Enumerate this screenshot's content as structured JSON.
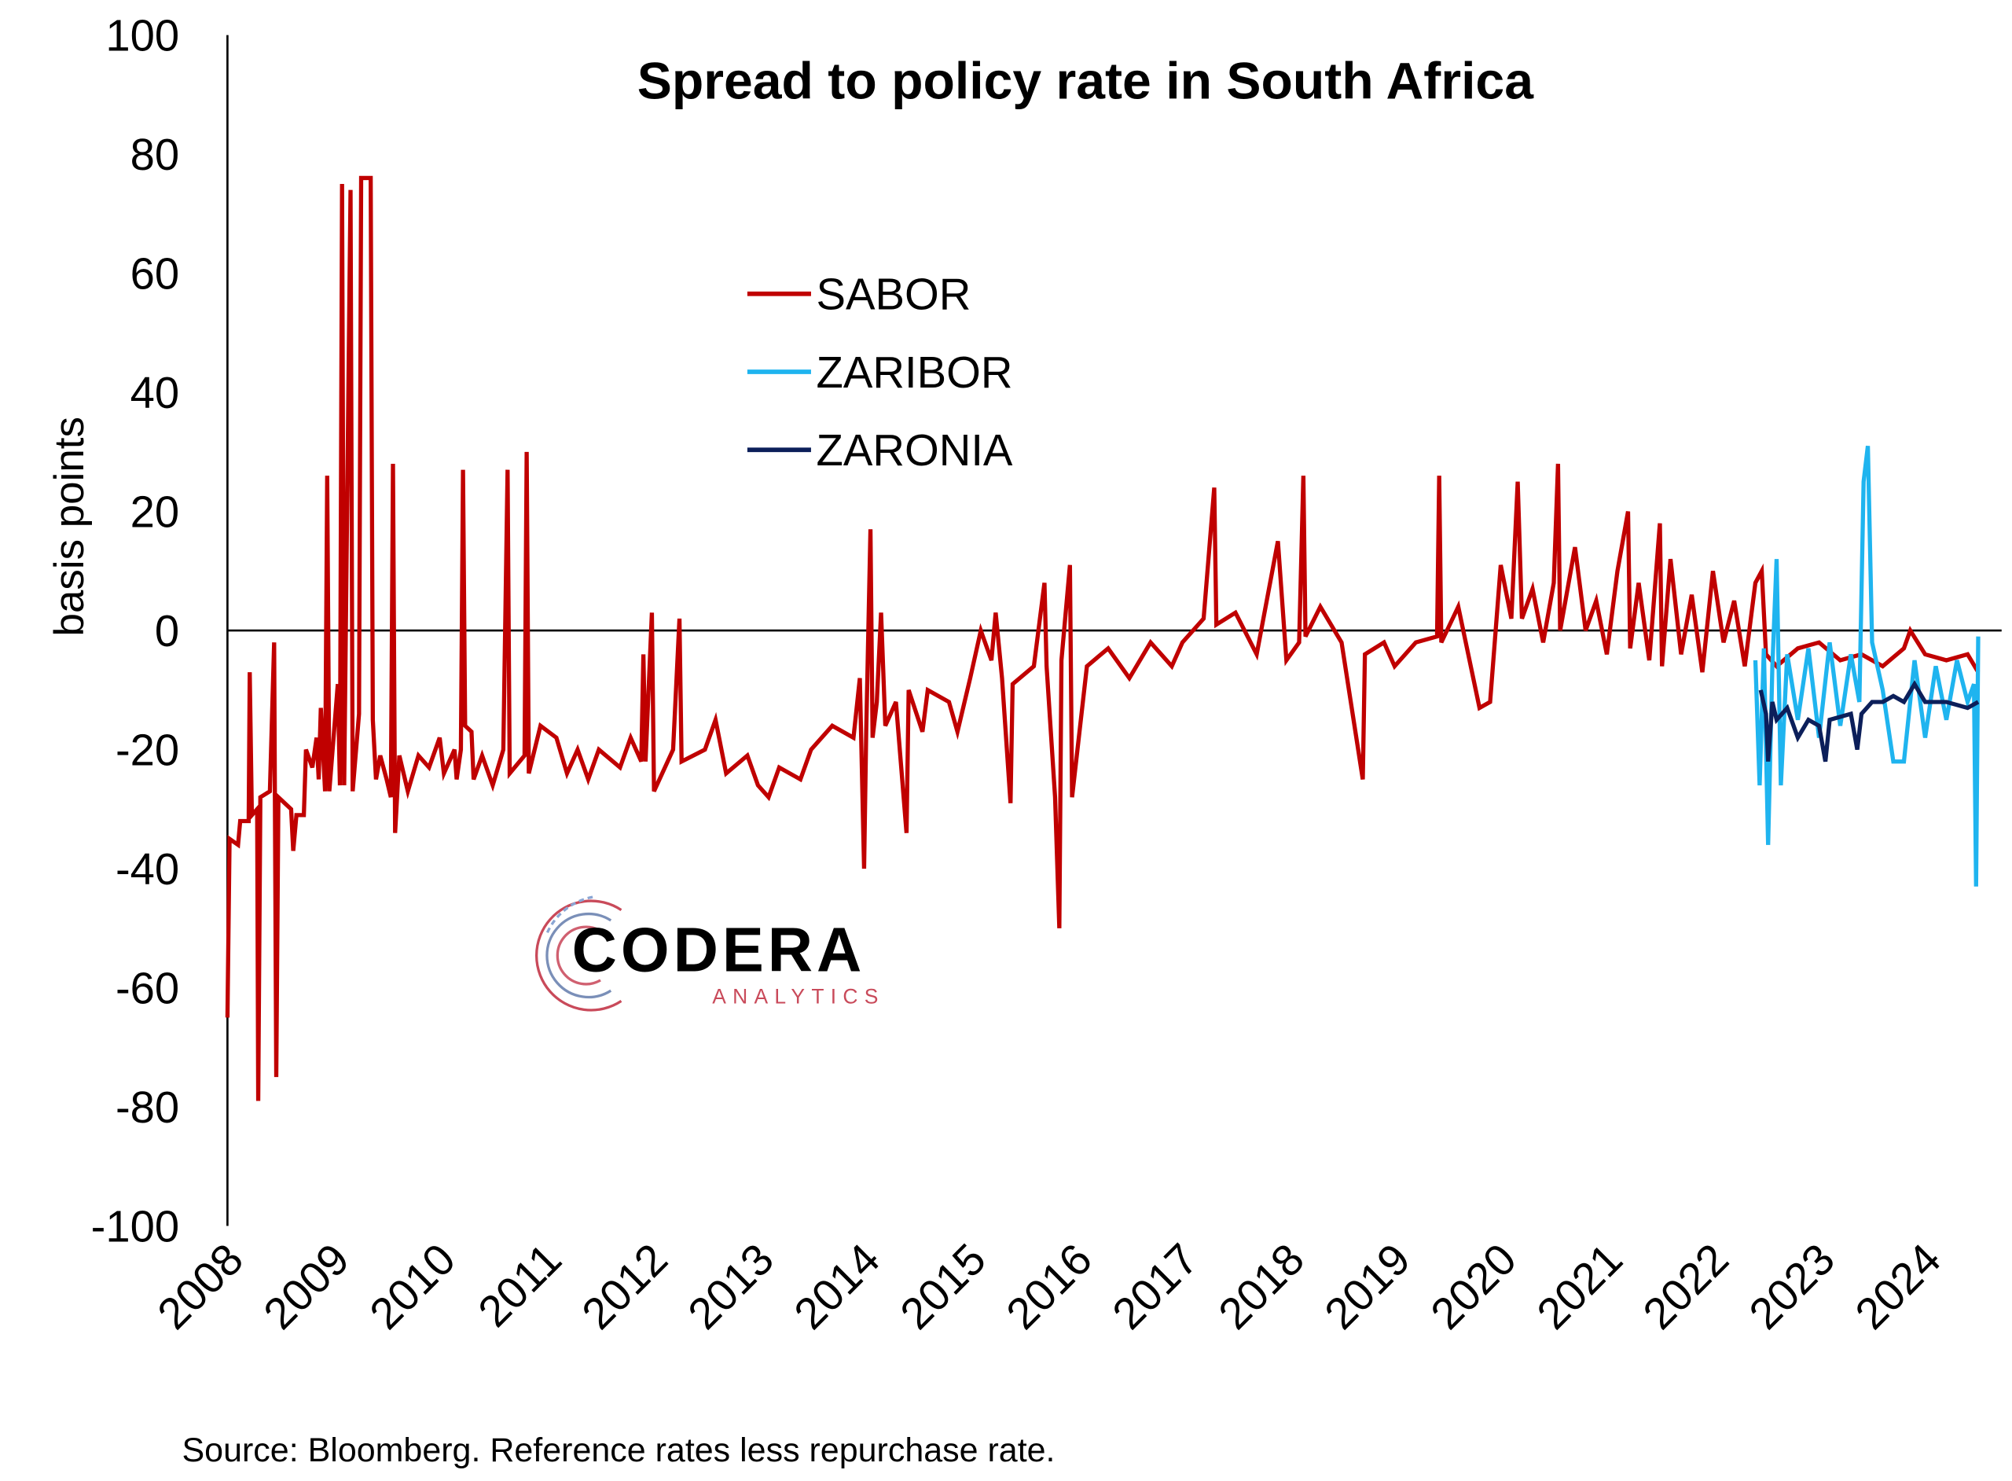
{
  "chart_data": {
    "type": "line",
    "title": "Spread to policy rate in South Africa",
    "ylabel": "basis points",
    "source": "Source: Bloomberg. Reference rates less repurchase rate.",
    "xlim": [
      2008,
      2024.5
    ],
    "xticks": [
      2008,
      2009,
      2010,
      2011,
      2012,
      2013,
      2014,
      2015,
      2016,
      2017,
      2018,
      2019,
      2020,
      2021,
      2022,
      2023,
      2024
    ],
    "ylim": [
      -100,
      100
    ],
    "yticks": [
      -100,
      -80,
      -60,
      -40,
      -20,
      0,
      20,
      40,
      60,
      80,
      100
    ],
    "grid": false,
    "series": [
      {
        "name": "SABOR",
        "color": "#c00000",
        "x": [
          2008.0,
          2008.02,
          2008.1,
          2008.12,
          2008.2,
          2008.21,
          2008.23,
          2008.28,
          2008.29,
          2008.31,
          2008.4,
          2008.44,
          2008.46,
          2008.48,
          2008.6,
          2008.62,
          2008.65,
          2008.72,
          2008.74,
          2008.8,
          2008.84,
          2008.86,
          2008.88,
          2008.92,
          2008.94,
          2008.96,
          2009.04,
          2009.06,
          2009.08,
          2009.1,
          2009.16,
          2009.18,
          2009.24,
          2009.26,
          2009.35,
          2009.37,
          2009.4,
          2009.44,
          2009.5,
          2009.54,
          2009.56,
          2009.58,
          2009.62,
          2009.7,
          2009.8,
          2009.9,
          2010.0,
          2010.04,
          2010.14,
          2010.16,
          2010.2,
          2010.22,
          2010.24,
          2010.3,
          2010.32,
          2010.4,
          2010.5,
          2010.6,
          2010.64,
          2010.66,
          2010.8,
          2010.82,
          2010.84,
          2010.95,
          2011.1,
          2011.2,
          2011.3,
          2011.4,
          2011.5,
          2011.7,
          2011.8,
          2011.9,
          2011.92,
          2011.94,
          2012.0,
          2012.02,
          2012.2,
          2012.26,
          2012.28,
          2012.5,
          2012.6,
          2012.7,
          2012.9,
          2013.0,
          2013.1,
          2013.2,
          2013.4,
          2013.5,
          2013.7,
          2013.9,
          2013.96,
          2014.0,
          2014.02,
          2014.06,
          2014.08,
          2014.12,
          2014.16,
          2014.2,
          2014.3,
          2014.4,
          2014.42,
          2014.55,
          2014.6,
          2014.8,
          2014.88,
          2015.0,
          2015.1,
          2015.2,
          2015.24,
          2015.3,
          2015.38,
          2015.4,
          2015.6,
          2015.7,
          2015.72,
          2015.8,
          2015.84,
          2015.86,
          2015.94,
          2015.96,
          2016.1,
          2016.3,
          2016.5,
          2016.7,
          2016.9,
          2017.0,
          2017.2,
          2017.3,
          2017.32,
          2017.5,
          2017.7,
          2017.9,
          2017.98,
          2018.1,
          2018.14,
          2018.16,
          2018.3,
          2018.5,
          2018.7,
          2018.72,
          2018.9,
          2019.0,
          2019.2,
          2019.4,
          2019.42,
          2019.44,
          2019.6,
          2019.8,
          2019.9,
          2020.0,
          2020.1,
          2020.16,
          2020.2,
          2020.3,
          2020.4,
          2020.5,
          2020.54,
          2020.56,
          2020.7,
          2020.8,
          2020.9,
          2021.0,
          2021.1,
          2021.2,
          2021.22,
          2021.3,
          2021.4,
          2021.5,
          2021.52,
          2021.6,
          2021.7,
          2021.8,
          2021.9,
          2022.0,
          2022.1,
          2022.2,
          2022.3,
          2022.4,
          2022.46,
          2022.5,
          2022.6,
          2022.8,
          2023.0,
          2023.2,
          2023.4,
          2023.6,
          2023.8,
          2023.86,
          2024.0,
          2024.2,
          2024.4,
          2024.5
        ],
        "values": [
          -65,
          -35,
          -36,
          -32,
          -32,
          -7,
          -31,
          -30,
          -79,
          -28,
          -27,
          -2,
          -75,
          -28,
          -30,
          -37,
          -31,
          -31,
          -20,
          -23,
          -18,
          -25,
          -13,
          -27,
          26,
          -27,
          -9,
          -26,
          75,
          -26,
          74,
          -27,
          -14,
          76,
          76,
          -15,
          -25,
          -21,
          -25,
          -28,
          28,
          -34,
          -21,
          -27,
          -21,
          -23,
          -18,
          -24,
          -20,
          -25,
          -20,
          27,
          -16,
          -17,
          -25,
          -21,
          -26,
          -20,
          27,
          -24,
          -21,
          30,
          -24,
          -16,
          -18,
          -24,
          -20,
          -25,
          -20,
          -23,
          -18,
          -22,
          -4,
          -22,
          3,
          -27,
          -20,
          2,
          -22,
          -20,
          -15,
          -24,
          -21,
          -26,
          -28,
          -23,
          -25,
          -20,
          -16,
          -18,
          -8,
          -40,
          -17,
          17,
          -18,
          -12,
          3,
          -16,
          -12,
          -34,
          -10,
          -17,
          -10,
          -12,
          -17,
          -8,
          0,
          -5,
          3,
          -8,
          -29,
          -9,
          -6,
          8,
          -6,
          -28,
          -50,
          -5,
          11,
          -28,
          -6,
          -3,
          -8,
          -2,
          -6,
          -2,
          2,
          24,
          1,
          3,
          -4,
          15,
          -5,
          -2,
          26,
          -1,
          4,
          -2,
          -25,
          -4,
          -2,
          -6,
          -2,
          -1,
          26,
          -2,
          4,
          -13,
          -12,
          11,
          2,
          25,
          2,
          7,
          -2,
          8,
          28,
          0,
          14,
          0,
          5,
          -4,
          10,
          20,
          -3,
          8,
          -5,
          18,
          -6,
          12,
          -4,
          6,
          -7,
          10,
          -2,
          5,
          -6,
          8,
          10,
          -4,
          -6,
          -3,
          -2,
          -5,
          -4,
          -6,
          -3,
          0,
          -4,
          -5,
          -4,
          -7
        ]
      },
      {
        "name": "ZARIBOR",
        "color": "#1fb4ef",
        "x": [
          2022.4,
          2022.44,
          2022.48,
          2022.52,
          2022.56,
          2022.6,
          2022.64,
          2022.7,
          2022.8,
          2022.9,
          2023.0,
          2023.1,
          2023.2,
          2023.3,
          2023.38,
          2023.42,
          2023.46,
          2023.5,
          2023.6,
          2023.7,
          2023.8,
          2023.9,
          2024.0,
          2024.1,
          2024.2,
          2024.3,
          2024.4,
          2024.46,
          2024.48,
          2024.5
        ],
        "values": [
          -5,
          -26,
          -3,
          -36,
          -6,
          12,
          -26,
          -4,
          -15,
          -3,
          -18,
          -2,
          -16,
          -4,
          -12,
          25,
          31,
          -2,
          -10,
          -22,
          -22,
          -5,
          -18,
          -6,
          -15,
          -5,
          -12,
          -9,
          -43,
          -1
        ]
      },
      {
        "name": "ZARONIA",
        "color": "#0c1f5a",
        "x": [
          2022.45,
          2022.5,
          2022.52,
          2022.56,
          2022.6,
          2022.7,
          2022.8,
          2022.9,
          2023.0,
          2023.06,
          2023.1,
          2023.3,
          2023.36,
          2023.4,
          2023.5,
          2023.6,
          2023.7,
          2023.8,
          2023.9,
          2024.0,
          2024.2,
          2024.4,
          2024.5
        ],
        "values": [
          -10,
          -14,
          -22,
          -12,
          -15,
          -13,
          -18,
          -15,
          -16,
          -22,
          -15,
          -14,
          -20,
          -14,
          -12,
          -12,
          -11,
          -12,
          -9,
          -12,
          -12,
          -13,
          -12
        ]
      }
    ]
  },
  "logo": {
    "name": "CODERA",
    "tagline": "ANALYTICS"
  }
}
